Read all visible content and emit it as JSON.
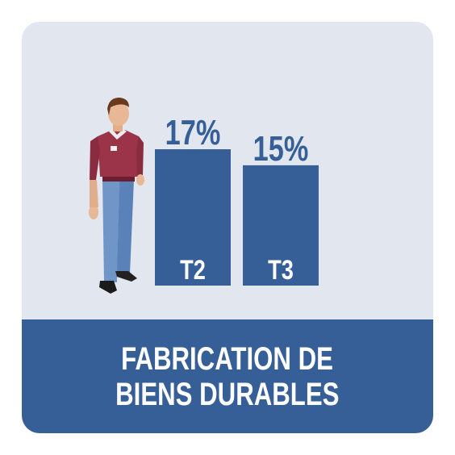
{
  "colors": {
    "panel_background": "#E1E6EF",
    "bar": "#365F97",
    "value_text": "#365F97",
    "caption_background": "#365F97",
    "caption_text": "#FFFFFF",
    "category_text": "#FFFFFF"
  },
  "illustration": {
    "icon": "worker-person-icon"
  },
  "caption": {
    "line1": "FABRICATION DE",
    "line2": "BIENS DURABLES"
  },
  "chart_data": {
    "type": "bar",
    "title": "FABRICATION DE BIENS DURABLES",
    "categories": [
      "T2",
      "T3"
    ],
    "values": [
      17,
      15
    ],
    "value_labels": [
      "17%",
      "15%"
    ],
    "unit": "%",
    "ylim": [
      0,
      17
    ],
    "grid": false,
    "legend": "none"
  }
}
